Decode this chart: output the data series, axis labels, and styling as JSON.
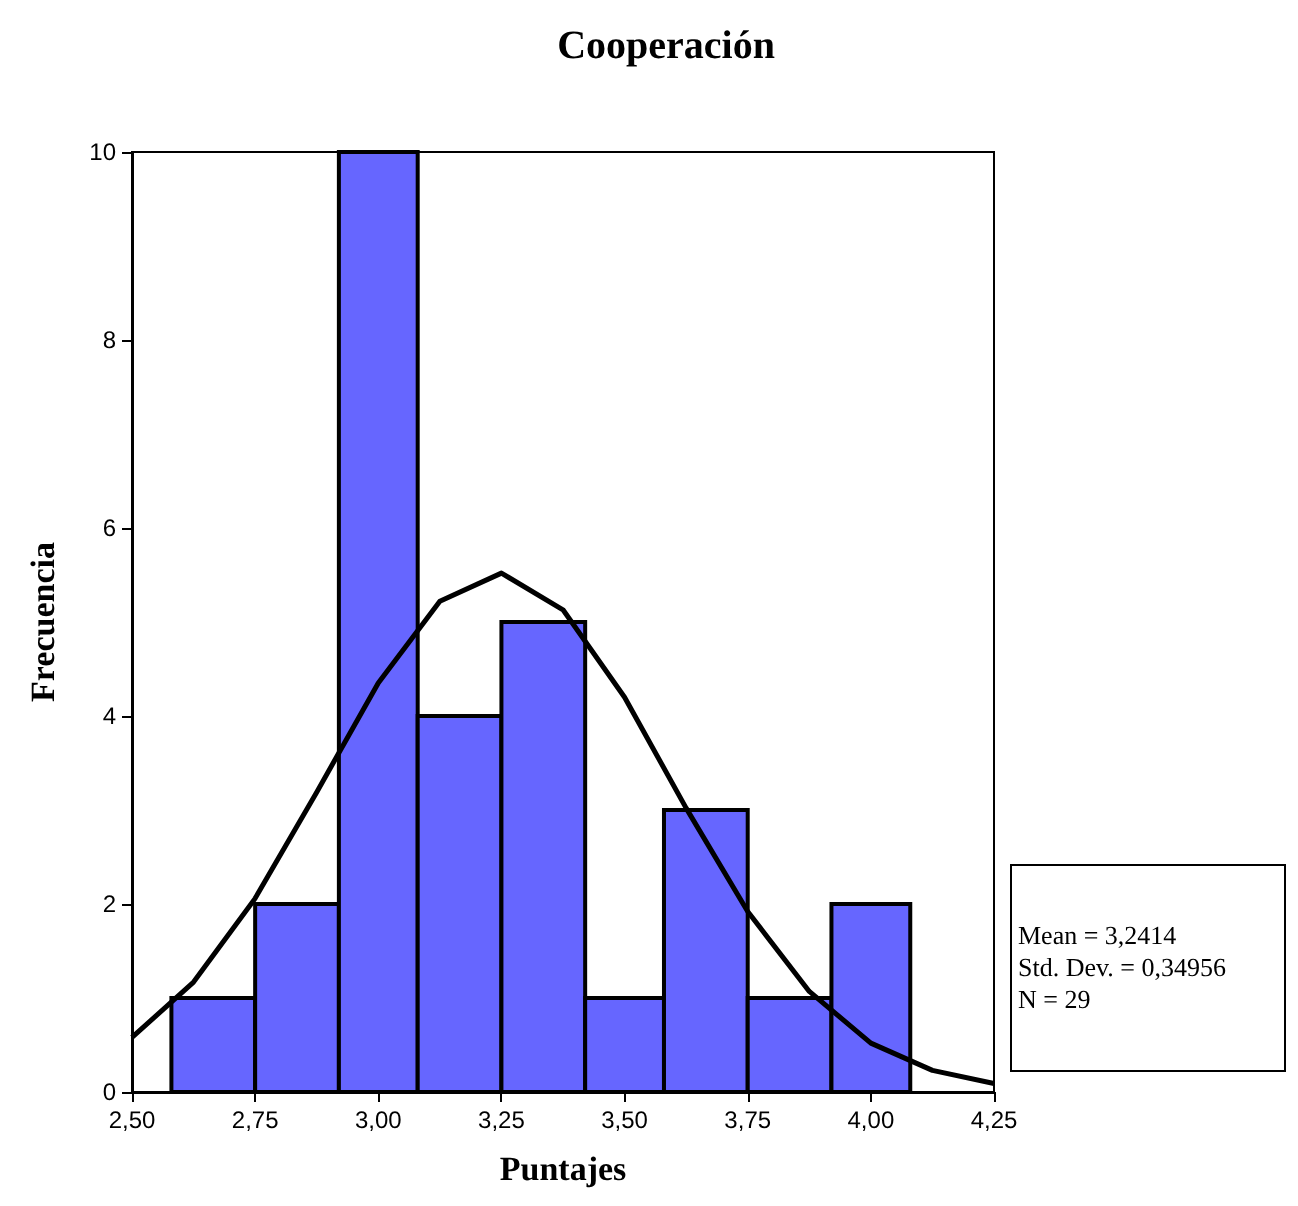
{
  "chart_data": {
    "type": "histogram",
    "title": "Cooperación",
    "xlabel": "Puntajes",
    "ylabel": "Frecuencia",
    "bins": [
      2.58,
      2.75,
      2.92,
      3.08,
      3.25,
      3.42,
      3.58,
      3.75,
      3.92,
      4.08
    ],
    "values": [
      1,
      2,
      10,
      4,
      5,
      1,
      3,
      1,
      2
    ],
    "color": "#6666ff",
    "series": [
      {
        "type": "line",
        "color": "#000000",
        "x": [
          2.5,
          2.625,
          2.75,
          2.875,
          3.0,
          3.125,
          3.25,
          3.375,
          3.5,
          3.625,
          3.75,
          3.875,
          4.0,
          4.125,
          4.25
        ],
        "values": [
          0.58,
          1.17,
          2.06,
          3.19,
          4.35,
          5.22,
          5.52,
          5.13,
          4.2,
          3.02,
          1.92,
          1.07,
          0.52,
          0.23,
          0.09
        ]
      }
    ],
    "marker": "none",
    "grid": false,
    "xlim": [
      2.5,
      4.25
    ],
    "xticks": [
      {
        "value": 2.5,
        "label": "2,50"
      },
      {
        "value": 2.75,
        "label": "2,75"
      },
      {
        "value": 3.0,
        "label": "3,00"
      },
      {
        "value": 3.25,
        "label": "3,25"
      },
      {
        "value": 3.5,
        "label": "3,50"
      },
      {
        "value": 3.75,
        "label": "3,75"
      },
      {
        "value": 4.0,
        "label": "4,00"
      },
      {
        "value": 4.25,
        "label": "4,25"
      }
    ],
    "ylim": [
      0,
      10
    ],
    "yticks": [
      0,
      2,
      4,
      6,
      8,
      10
    ],
    "annotations": [
      "Mean = 3,2414",
      "Std. Dev. = 0,34956",
      "N = 29"
    ]
  }
}
